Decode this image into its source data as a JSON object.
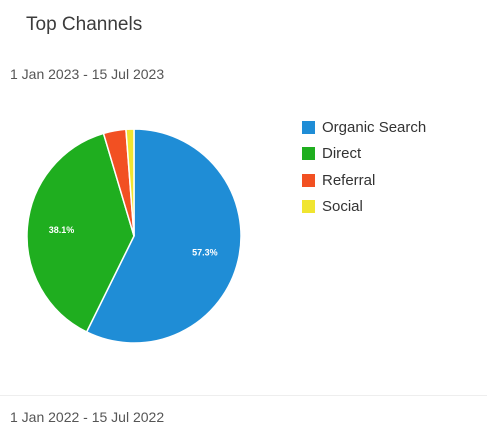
{
  "card": {
    "title": "Top Channels",
    "primary_range": "1 Jan 2023 - 15 Jul 2023",
    "secondary_range": "1 Jan 2022 - 15 Jul 2022"
  },
  "chart_data": {
    "type": "pie",
    "title": "Top Channels",
    "categories": [
      "Organic Search",
      "Direct",
      "Referral",
      "Social"
    ],
    "values": [
      57.3,
      38.1,
      3.4,
      1.2
    ],
    "colors": [
      "#1f8dd6",
      "#1fae1f",
      "#f25022",
      "#f0e530"
    ],
    "data_labels": [
      "57.3%",
      "38.1%",
      "",
      ""
    ],
    "legend_position": "right"
  }
}
